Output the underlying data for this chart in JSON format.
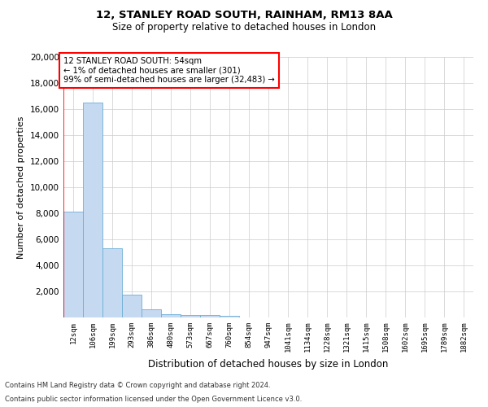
{
  "title1": "12, STANLEY ROAD SOUTH, RAINHAM, RM13 8AA",
  "title2": "Size of property relative to detached houses in London",
  "xlabel": "Distribution of detached houses by size in London",
  "ylabel": "Number of detached properties",
  "bar_labels": [
    "12sqm",
    "106sqm",
    "199sqm",
    "293sqm",
    "386sqm",
    "480sqm",
    "573sqm",
    "667sqm",
    "760sqm",
    "854sqm",
    "947sqm",
    "1041sqm",
    "1134sqm",
    "1228sqm",
    "1321sqm",
    "1415sqm",
    "1508sqm",
    "1602sqm",
    "1695sqm",
    "1789sqm",
    "1882sqm"
  ],
  "bar_values": [
    8100,
    16500,
    5300,
    1750,
    650,
    280,
    200,
    170,
    130,
    0,
    0,
    0,
    0,
    0,
    0,
    0,
    0,
    0,
    0,
    0,
    0
  ],
  "bar_color": "#c5d9f0",
  "bar_edge_color": "#6baed6",
  "annotation_title": "12 STANLEY ROAD SOUTH: 54sqm",
  "annotation_line1": "← 1% of detached houses are smaller (301)",
  "annotation_line2": "99% of semi-detached houses are larger (32,483) →",
  "ylim": [
    0,
    20000
  ],
  "yticks": [
    0,
    2000,
    4000,
    6000,
    8000,
    10000,
    12000,
    14000,
    16000,
    18000,
    20000
  ],
  "footnote1": "Contains HM Land Registry data © Crown copyright and database right 2024.",
  "footnote2": "Contains public sector information licensed under the Open Government Licence v3.0.",
  "bg_color": "#ffffff",
  "grid_color": "#cccccc"
}
